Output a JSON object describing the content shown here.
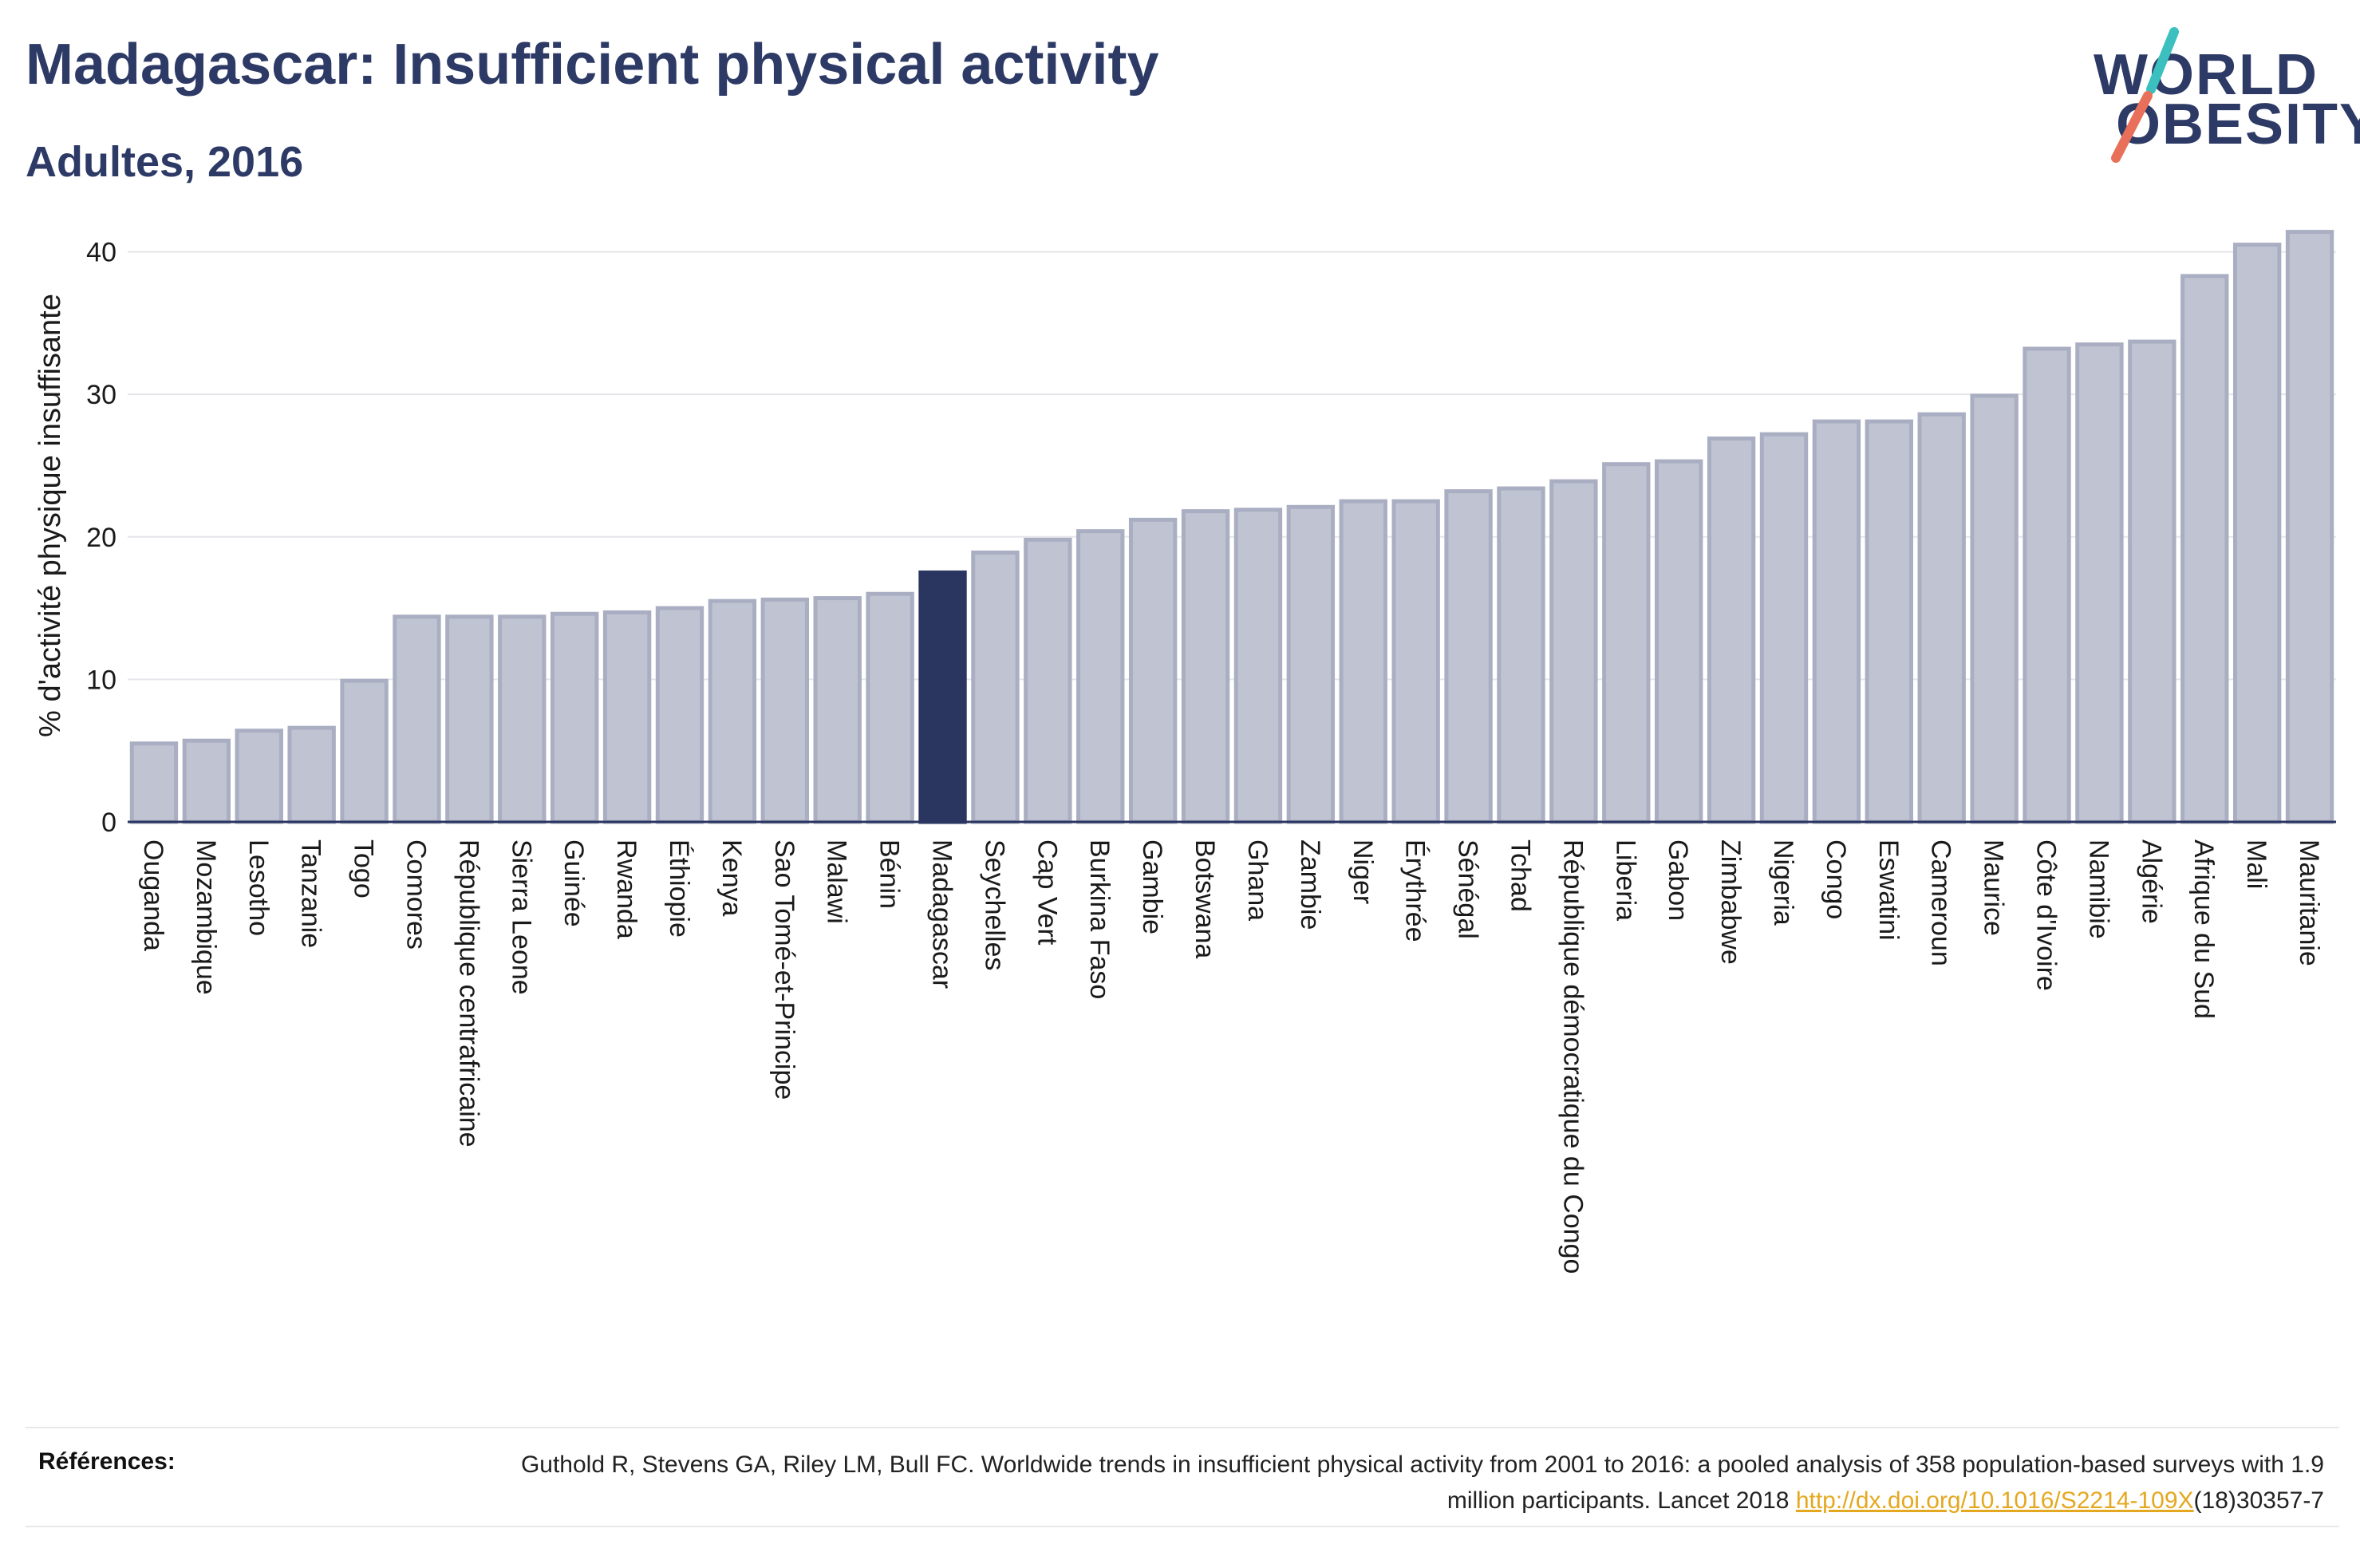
{
  "header": {
    "title": "Madagascar: Insufficient physical activity",
    "subtitle": "Adultes, 2016"
  },
  "logo": {
    "line1": "WORLD",
    "line2": "OBESITY",
    "colors": {
      "text": "#2d3a66",
      "slash_top": "#3bbfbf",
      "slash_bottom": "#e8705a"
    }
  },
  "footer": {
    "refs_label": "Références:",
    "ref_text_1": "Guthold R, Stevens GA, Riley LM, Bull FC. Worldwide trends in insufficient physical activity from 2001 to 2016: a pooled analysis of 358 population-based surveys with 1.9 million participants. Lancet 2018 ",
    "ref_link": "http://dx.doi.org/10.1016/S2214-109X",
    "ref_text_2": "(18)30357-7"
  },
  "colors": {
    "bar": "#c0c4d2",
    "bar_stroke": "#a9aec2",
    "highlight": "#2a3560",
    "axis_text": "#1a1a1a",
    "grid": "#e6e6ea"
  },
  "chart_data": {
    "type": "bar",
    "title": "Madagascar: Insufficient physical activity",
    "subtitle": "Adultes, 2016",
    "xlabel": "",
    "ylabel": "% d'activité physique insuffisante",
    "ylim": [
      0,
      43
    ],
    "yticks": [
      0,
      10,
      20,
      30,
      40
    ],
    "grid": true,
    "highlight": "Madagascar",
    "categories": [
      "Ouganda",
      "Mozambique",
      "Lesotho",
      "Tanzanie",
      "Togo",
      "Comores",
      "République centrafricaine",
      "Sierra Leone",
      "Guinée",
      "Rwanda",
      "Éthiopie",
      "Kenya",
      "Sao Tomé-et-Principe",
      "Malawi",
      "Bénin",
      "Madagascar",
      "Seychelles",
      "Cap Vert",
      "Burkina Faso",
      "Gambie",
      "Botswana",
      "Ghana",
      "Zambie",
      "Niger",
      "Érythrée",
      "Sénégal",
      "Tchad",
      "République démocratique du Congo",
      "Liberia",
      "Gabon",
      "Zimbabwe",
      "Nigeria",
      "Congo",
      "Eswatini",
      "Cameroun",
      "Maurice",
      "Côte d'Ivoire",
      "Namibie",
      "Algérie",
      "Afrique du Sud",
      "Mali",
      "Mauritanie"
    ],
    "values": [
      5.5,
      5.7,
      6.4,
      6.6,
      9.9,
      14.4,
      14.4,
      14.4,
      14.6,
      14.7,
      15.0,
      15.5,
      15.6,
      15.7,
      16.0,
      17.5,
      18.9,
      19.8,
      20.4,
      21.2,
      21.8,
      21.9,
      22.1,
      22.5,
      22.5,
      23.2,
      23.4,
      23.9,
      25.1,
      25.3,
      26.9,
      27.2,
      28.1,
      28.1,
      28.6,
      29.9,
      33.2,
      33.5,
      33.7,
      38.3,
      40.5,
      41.4
    ]
  }
}
